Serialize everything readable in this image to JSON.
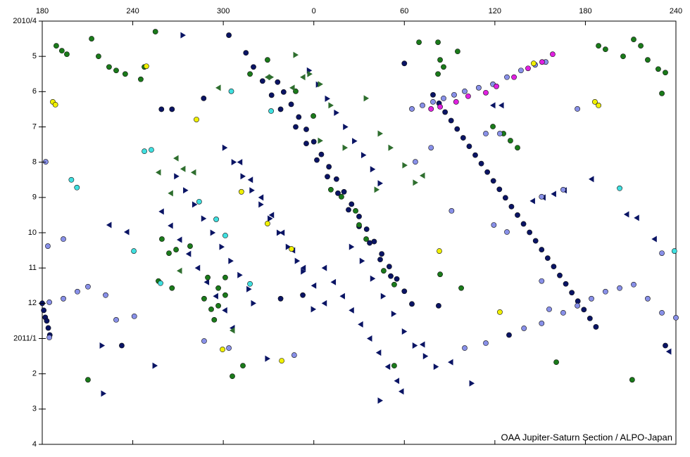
{
  "chart_data": {
    "type": "scatter",
    "annotation": "OAA Jupiter-Saturn Section / ALPO-Japan",
    "xlim": [
      180,
      600
    ],
    "xticks": [
      180,
      240,
      300,
      {
        "value": 360,
        "label": "0"
      },
      {
        "value": 420,
        "label": "60"
      },
      {
        "value": 480,
        "label": "120"
      },
      {
        "value": 540,
        "label": "180"
      },
      {
        "value": 600,
        "label": "240"
      }
    ],
    "ylim": [
      12,
      0
    ],
    "yticks": [
      {
        "value": 0,
        "label": "2010/4"
      },
      {
        "value": 1,
        "label": "5"
      },
      {
        "value": 2,
        "label": "6"
      },
      {
        "value": 3,
        "label": "7"
      },
      {
        "value": 4,
        "label": "8"
      },
      {
        "value": 5,
        "label": "9"
      },
      {
        "value": 6,
        "label": "10"
      },
      {
        "value": 7,
        "label": "11"
      },
      {
        "value": 8,
        "label": "12"
      },
      {
        "value": 9,
        "label": "2011/1"
      },
      {
        "value": 10,
        "label": "2"
      },
      {
        "value": 11,
        "label": "3"
      },
      {
        "value": 12,
        "label": "4"
      }
    ],
    "series": [
      {
        "color": "#0a1464",
        "marker": "circle",
        "x": [
          439,
          443,
          447,
          451,
          455,
          459,
          463,
          467,
          471,
          475,
          479,
          483,
          487,
          491,
          495,
          499,
          503,
          507,
          511,
          515,
          519,
          523,
          527,
          531,
          535,
          539,
          543,
          547,
          336,
          340,
          345,
          350,
          355,
          360,
          365,
          370,
          375,
          380,
          385,
          390,
          395,
          400,
          405,
          410,
          415,
          420,
          425,
          348,
          355,
          362,
          369,
          376,
          383,
          390,
          397,
          404,
          411,
          315,
          320,
          326,
          332,
          338,
          180,
          181,
          182,
          183,
          184,
          185,
          287,
          303.7,
          259,
          266,
          420,
          232.7,
          593,
          489.4,
          442.7,
          352.7,
          338
        ],
        "y": [
          2.09,
          2.33,
          2.58,
          2.82,
          3.06,
          3.31,
          3.55,
          3.8,
          4.04,
          4.28,
          4.53,
          4.77,
          5.01,
          5.26,
          5.5,
          5.75,
          5.99,
          6.23,
          6.48,
          6.72,
          6.96,
          7.21,
          7.45,
          7.7,
          7.94,
          8.18,
          8.43,
          8.67,
          1.73,
          2.01,
          2.36,
          2.72,
          3.07,
          3.42,
          3.78,
          4.13,
          4.48,
          4.84,
          5.19,
          5.54,
          5.9,
          6.25,
          6.6,
          6.96,
          7.31,
          7.66,
          8.02,
          3.0,
          3.47,
          3.94,
          4.41,
          4.88,
          5.35,
          5.82,
          6.29,
          6.76,
          7.23,
          0.9,
          1.3,
          1.7,
          2.1,
          2.5,
          8.0,
          8.2,
          8.4,
          8.5,
          8.7,
          8.9,
          2.19,
          0.4,
          2.5,
          2.5,
          1.2,
          9.2,
          9.2,
          8.9,
          8.07,
          7.77,
          7.87
        ]
      },
      {
        "color": "#0a1464",
        "marker": "tri-right",
        "x": [
          301,
          307,
          313,
          319,
          325,
          331,
          337,
          343,
          349,
          353,
          269,
          275,
          281,
          287,
          293,
          299,
          305,
          311,
          317,
          320,
          385,
          392,
          399,
          406,
          413,
          420,
          427,
          434,
          441,
          357,
          363,
          369,
          375,
          381,
          387,
          393,
          399,
          404,
          219.7,
          220.6,
          273.3,
          359.7,
          329.3,
          404,
          464.7,
          254.7
        ],
        "y": [
          3.59,
          4.0,
          4.4,
          4.8,
          5.2,
          5.6,
          6.0,
          6.4,
          6.8,
          7.1,
          4.4,
          4.8,
          5.2,
          5.6,
          6.0,
          6.4,
          6.8,
          7.2,
          7.6,
          8.0,
          6.4,
          6.8,
          7.3,
          7.8,
          8.3,
          8.8,
          9.2,
          9.5,
          9.8,
          1.4,
          1.8,
          2.2,
          2.6,
          3.0,
          3.4,
          3.8,
          4.2,
          4.6,
          9.2,
          10.56,
          0.4,
          8.17,
          9.57,
          10.76,
          10.27,
          9.77
        ]
      },
      {
        "color": "#0a1464",
        "marker": "tri-left",
        "x": [
          311,
          318,
          325,
          332,
          339,
          346,
          353,
          360,
          367,
          259,
          265,
          271,
          277,
          283,
          289,
          295,
          301,
          306,
          367,
          373,
          379,
          385,
          391,
          397,
          403,
          409,
          415,
          418,
          505,
          512,
          519,
          526,
          478.7,
          484.3,
          544,
          567.3,
          574,
          585.7,
          224.3,
          236,
          432,
          450.7,
          595.3
        ],
        "y": [
          4.0,
          4.5,
          5.0,
          5.5,
          6.0,
          6.5,
          7.0,
          7.5,
          8.0,
          5.4,
          5.8,
          6.2,
          6.6,
          7.0,
          7.4,
          7.8,
          8.2,
          8.7,
          7.0,
          7.4,
          7.8,
          8.2,
          8.6,
          9.0,
          9.4,
          9.8,
          10.2,
          10.5,
          5.1,
          5.0,
          4.9,
          4.8,
          2.39,
          2.39,
          4.48,
          5.48,
          5.58,
          6.18,
          5.78,
          5.98,
          9.17,
          9.67,
          9.37
        ]
      },
      {
        "color": "#1a7a1a",
        "marker": "circle",
        "x": [
          189.3,
          193,
          196.3,
          212.7,
          217.3,
          224.3,
          229,
          235,
          245.3,
          247.7,
          255,
          548.7,
          553.3,
          565,
          572,
          576.7,
          581.3,
          588.3,
          593,
          590.7,
          429.7,
          442.3,
          443.7,
          446,
          442.3,
          455.3,
          296.7,
          292,
          301.3,
          294,
          289.7,
          287.3,
          296.7,
          301.3,
          264,
          268.7,
          259.3,
          257,
          266,
          278,
          371.3,
          378.3,
          387.7,
          390,
          394.7,
          406.3,
          413.3,
          478.7,
          485.7,
          490.3,
          495,
          443.7,
          457.7,
          520.7,
          210.3,
          571,
          317.7,
          329.3,
          348,
          359.7,
          306,
          313,
          413.3
        ],
        "y": [
          0.7,
          0.84,
          0.94,
          0.5,
          1.0,
          1.3,
          1.4,
          1.5,
          1.65,
          1.3,
          0.3,
          0.7,
          0.8,
          1.0,
          0.52,
          0.7,
          1.1,
          1.36,
          1.46,
          2.05,
          0.6,
          0.6,
          1.1,
          1.3,
          1.5,
          0.86,
          7.57,
          8.17,
          7.77,
          8.47,
          7.27,
          7.87,
          8.07,
          7.27,
          6.58,
          6.48,
          6.18,
          7.37,
          7.57,
          6.38,
          4.78,
          4.98,
          5.38,
          5.78,
          6.18,
          7.08,
          7.47,
          2.99,
          3.19,
          3.39,
          3.59,
          7.18,
          7.57,
          9.67,
          10.17,
          10.17,
          1.5,
          1.1,
          1.99,
          2.69,
          10.07,
          9.77,
          9.77
        ]
      },
      {
        "color": "#2e6e2e",
        "marker": "tri-right",
        "x": [
          348,
          357.3,
          364.3,
          371.3,
          394.7,
          404,
          411,
          420.3,
          427.3,
          401.7,
          364.3,
          380.7,
          331.7
        ],
        "y": [
          0.96,
          1.5,
          1.79,
          2.39,
          2.19,
          3.19,
          3.59,
          4.09,
          4.58,
          4.78,
          3.39,
          3.59,
          1.59
        ]
      },
      {
        "color": "#2e6e2e",
        "marker": "tri-left",
        "x": [
          345.7,
          352.7,
          268.7,
          273.3,
          265.1,
          280.3,
          329.3,
          296.7,
          257,
          271,
          306,
          432
        ],
        "y": [
          1.89,
          1.59,
          3.89,
          4.19,
          4.88,
          4.29,
          1.59,
          1.89,
          4.29,
          7.08,
          8.77,
          4.38
        ]
      },
      {
        "color": "#8890e8",
        "marker": "circle",
        "x": [
          425,
          432,
          439,
          446,
          453,
          460,
          469.3,
          478.7,
          488,
          497.3,
          506.7,
          513.7,
          184.7,
          194,
          203.3,
          210.3,
          222,
          229,
          241,
          184.7,
          182.3,
          183.7,
          194,
          516,
          525.3,
          534.7,
          544,
          553.3,
          562.7,
          572,
          581.3,
          590.7,
          600,
          499.3,
          511,
          474,
          460,
          427.3,
          437.7,
          451.3,
          479.3,
          488,
          474,
          483.3,
          534.7,
          590.7,
          511,
          511,
          525.3,
          303.7,
          347,
          287.3
        ],
        "y": [
          2.49,
          2.39,
          2.29,
          2.19,
          2.09,
          1.99,
          1.89,
          1.79,
          1.59,
          1.4,
          1.24,
          1.16,
          7.97,
          7.87,
          7.67,
          7.53,
          7.77,
          8.47,
          8.37,
          8.97,
          3.99,
          6.38,
          6.18,
          8.17,
          8.27,
          8.07,
          7.87,
          7.67,
          7.57,
          7.47,
          7.87,
          8.27,
          8.41,
          8.71,
          8.57,
          9.13,
          9.27,
          3.99,
          3.59,
          5.38,
          5.78,
          5.98,
          3.19,
          3.19,
          2.49,
          6.58,
          7.37,
          4.98,
          4.78,
          9.27,
          9.47,
          9.07
        ]
      },
      {
        "color": "#40e0e0",
        "marker": "circle",
        "x": [
          203,
          199.3,
          252.3,
          247.7,
          331.7,
          284,
          295.3,
          301.3,
          317.7,
          240.7,
          258.4,
          562.7,
          599,
          305.3
        ],
        "y": [
          4.72,
          4.5,
          3.65,
          3.69,
          2.55,
          5.12,
          5.62,
          6.08,
          7.45,
          6.52,
          7.43,
          4.74,
          6.52,
          1.99
        ]
      },
      {
        "color": "#f0f000",
        "marker": "circle",
        "x": [
          187,
          188.7,
          249,
          282.2,
          312,
          329.3,
          345.2,
          443.2,
          483.3,
          505.7,
          546.3,
          548.7,
          299.5,
          338.7
        ],
        "y": [
          2.29,
          2.37,
          1.28,
          2.79,
          4.84,
          5.74,
          6.46,
          6.52,
          8.25,
          1.2,
          2.29,
          2.39,
          9.31,
          9.63
        ]
      },
      {
        "color": "#e020e0",
        "marker": "circle",
        "x": [
          518.3,
          511.3,
          502,
          492.7,
          481,
          474,
          462.3,
          454.3,
          443.7,
          437.7
        ],
        "y": [
          0.94,
          1.16,
          1.34,
          1.59,
          1.85,
          2.03,
          2.13,
          2.29,
          2.43,
          2.49
        ]
      }
    ]
  }
}
